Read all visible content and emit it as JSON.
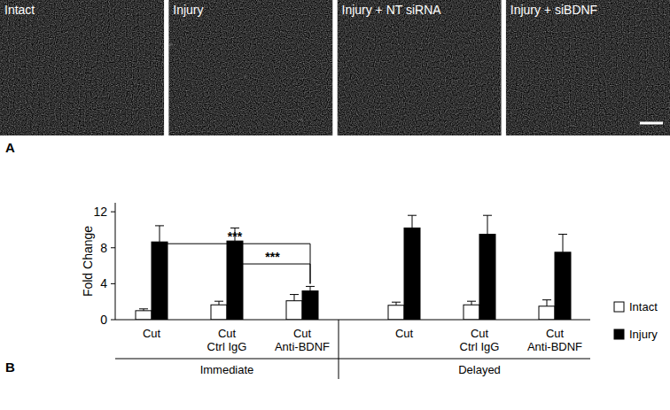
{
  "panel_a": {
    "letter": "A",
    "images": [
      {
        "label": "Intact"
      },
      {
        "label": "Injury"
      },
      {
        "label": "Injury + NT siRNA"
      },
      {
        "label": "Injury + siBDNF"
      }
    ]
  },
  "panel_b": {
    "letter": "B"
  },
  "chart_data": {
    "type": "bar",
    "y_label": "Fold Change",
    "categories": [
      "Cut",
      "Cut\nCtrl IgG",
      "Cut\nAnti-BDNF",
      "Cut",
      "Cut\nCtrl IgG",
      "Cut\nAnti-BDNF"
    ],
    "groups": [
      {
        "label": "Immediate",
        "count": 3
      },
      {
        "label": "Delayed",
        "count": 3
      }
    ],
    "series": [
      {
        "name": "Intact",
        "color": "#ffffff",
        "values": [
          1.0,
          1.65,
          2.1,
          1.6,
          1.65,
          1.5
        ],
        "errors": [
          0.2,
          0.4,
          0.7,
          0.35,
          0.4,
          0.7
        ]
      },
      {
        "name": "Injury",
        "color": "#000000",
        "values": [
          8.65,
          8.75,
          3.2,
          10.2,
          9.5,
          7.5
        ],
        "errors": [
          1.8,
          1.45,
          0.5,
          1.4,
          2.1,
          2.0
        ]
      }
    ],
    "ylim": [
      0,
      13
    ],
    "yticks": [
      0,
      4,
      8,
      12
    ],
    "legend": "right",
    "grid": false,
    "annotations": [
      {
        "text": "***",
        "from": 0,
        "to": 2,
        "series": 1,
        "y": 8.45
      },
      {
        "text": "***",
        "from": 1,
        "to": 2,
        "series": 1,
        "y": 6.2
      }
    ]
  }
}
